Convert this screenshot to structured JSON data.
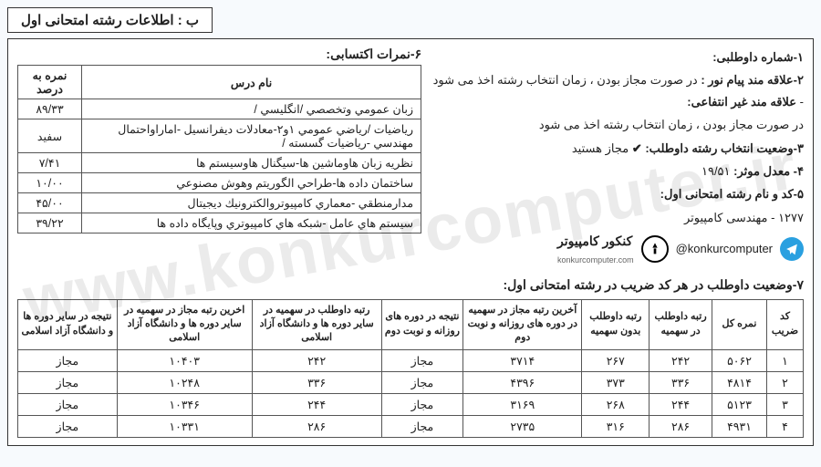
{
  "header_title": "ب : اطلاعات رشته امتحانی اول",
  "right": {
    "l1_label": "۱-شماره داوطلبی:",
    "l2_label": "۲-علاقه مند پیام نور :",
    "l2_text": "در صورت مجاز بودن ، زمان انتخاب رشته اخذ می شود -",
    "l2b_label": "علاقه مند غیر انتفاعی:",
    "l2b_text": "در صورت مجاز بودن ، زمان انتخاب رشته اخذ می شود",
    "l3_label": "۳-وضعیت انتخاب رشته داوطلب:",
    "l3_check": "✔",
    "l3_val": "مجاز هستید",
    "l4_label": "۴- معدل موثر:",
    "l4_val": "۱۹/۵۱",
    "l5_label": "۵-کد و نام رشته امتحانی اول:",
    "l5_val": "۱۲۷۷ - مهندسی کامپیوتر"
  },
  "scores_title": "۶-نمرات اکتسابی:",
  "scores_headers": {
    "name": "نام درس",
    "pct": "نمره به درصد"
  },
  "scores": [
    {
      "name": "زبان عمومي وتخصصي /انگليسي /",
      "pct": "۸۹/۳۳"
    },
    {
      "name": "رياضيات /رياضي عمومي ۱و۲-معادلات ديفرانسيل -اماراواحتمال مهندسي -رياضيات گسسته /",
      "pct": "سفید"
    },
    {
      "name": "نظريه زبان هاوماشين ها-سيگنال هاوسيستم ها",
      "pct": "۷/۴۱"
    },
    {
      "name": "ساختمان داده ها-طراحي الگوريتم وهوش مصنوعي",
      "pct": "۱۰/۰۰"
    },
    {
      "name": "مدارمنطقي -معماري كامپيوتروالكترونيك ديجيتال",
      "pct": "۴۵/۰۰"
    },
    {
      "name": "سيستم هاي عامل -شبكه هاي كامپيوتري وپايگاه داده ها",
      "pct": "۳۹/۲۲"
    }
  ],
  "brand": {
    "handle": "@konkurcomputer",
    "name": "کنکور کامپیوتر",
    "url": "konkurcomputer.com"
  },
  "sec7_title": "۷-وضعیت داوطلب در هر کد ضریب در رشته امتحانی اول:",
  "status_headers": {
    "code": "کد ضریب",
    "total": "نمره کل",
    "rank_q": "رتبه داوطلب در سهمیه",
    "rank_noq": "رتبه داوطلب بدون سهمیه",
    "last_day": "آخرین رتبه مجاز در سهمیه در دوره های روزانه و نوبت دوم",
    "res_day": "نتیجه در دوره های روزانه و نوبت دوم",
    "rank_other": "رتبه داوطلب در سهمیه در سایر دوره ها و دانشگاه آزاد اسلامی",
    "last_other": "اخرین رتبه مجاز در سهمیه در سایر دوره ها و دانشگاه آزاد اسلامی",
    "res_other": "نتیجه در سایر دوره ها و دانشگاه آزاد اسلامی"
  },
  "status": [
    {
      "code": "۱",
      "total": "۵۰۶۲",
      "rank_q": "۲۴۲",
      "rank_noq": "۲۶۷",
      "last_day": "۳۷۱۴",
      "res_day": "مجاز",
      "rank_other": "۲۴۲",
      "last_other": "۱۰۴۰۳",
      "res_other": "مجاز"
    },
    {
      "code": "۲",
      "total": "۴۸۱۴",
      "rank_q": "۳۳۶",
      "rank_noq": "۳۷۳",
      "last_day": "۴۳۹۶",
      "res_day": "مجاز",
      "rank_other": "۳۳۶",
      "last_other": "۱۰۲۴۸",
      "res_other": "مجاز"
    },
    {
      "code": "۳",
      "total": "۵۱۲۳",
      "rank_q": "۲۴۴",
      "rank_noq": "۲۶۸",
      "last_day": "۳۱۶۹",
      "res_day": "مجاز",
      "rank_other": "۲۴۴",
      "last_other": "۱۰۳۴۶",
      "res_other": "مجاز"
    },
    {
      "code": "۴",
      "total": "۴۹۳۱",
      "rank_q": "۲۸۶",
      "rank_noq": "۳۱۶",
      "last_day": "۲۷۳۵",
      "res_day": "مجاز",
      "rank_other": "۲۸۶",
      "last_other": "۱۰۳۳۱",
      "res_other": "مجاز"
    }
  ],
  "watermark": "www.konkurcomputer.ir",
  "colors": {
    "bg": "#f7fafd",
    "border": "#333333",
    "text": "#222222",
    "tg": "#2aa0e0",
    "wm": "rgba(0,0,0,0.08)"
  }
}
